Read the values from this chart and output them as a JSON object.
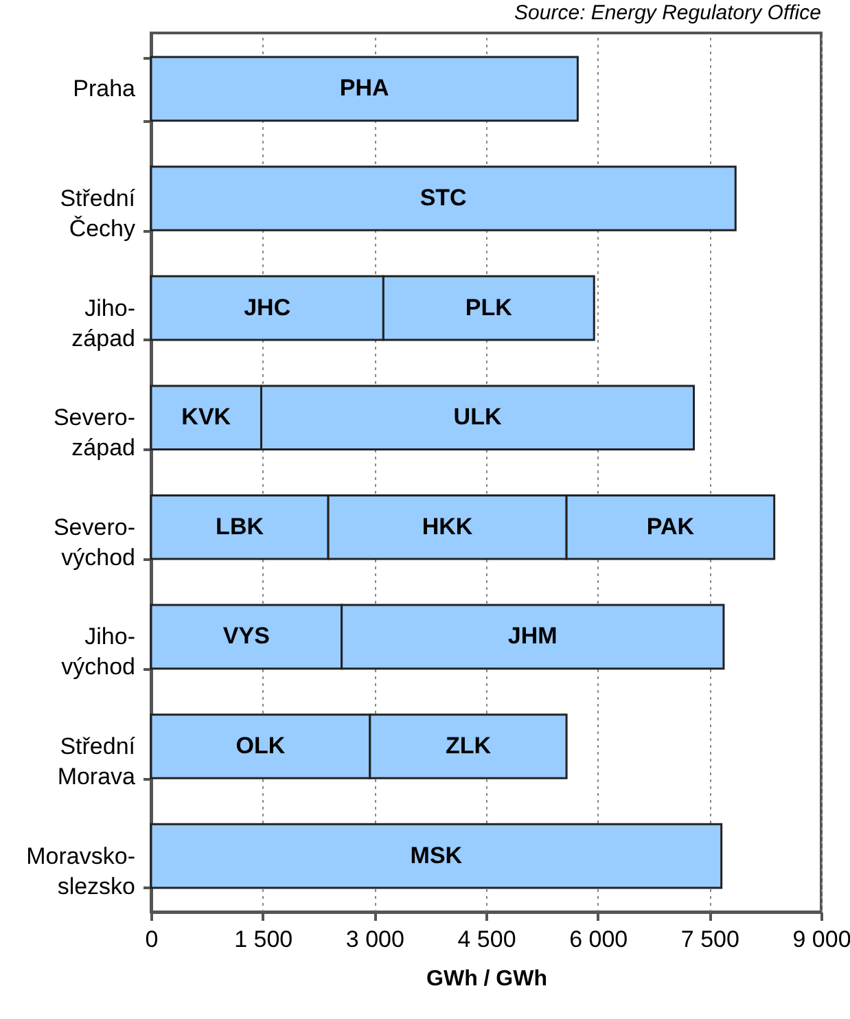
{
  "chart_data": {
    "type": "bar",
    "orientation": "horizontal",
    "stacked": true,
    "categories": [
      "Praha",
      "Střední Čechy",
      "Jiho-západ",
      "Severo-západ",
      "Severo-východ",
      "Jiho-východ",
      "Střední Morava",
      "Moravsko-slezsko"
    ],
    "series": [
      {
        "color": "#99ccff",
        "values": [
          5730,
          7850,
          3120,
          1480,
          2380,
          2560,
          2940,
          7660
        ],
        "value_labels": [
          "PHA",
          "STC",
          "JHC",
          "KVK",
          "LBK",
          "VYS",
          "OLK",
          "MSK"
        ]
      },
      {
        "color": "#99ccff",
        "values": [
          null,
          null,
          2830,
          5810,
          3200,
          5130,
          2640,
          null
        ],
        "value_labels": [
          null,
          null,
          "PLK",
          "ULK",
          "HKK",
          "JHM",
          "ZLK",
          null
        ]
      },
      {
        "color": "#99ccff",
        "values": [
          null,
          null,
          null,
          null,
          2790,
          null,
          null,
          null
        ],
        "value_labels": [
          null,
          null,
          null,
          null,
          "PAK",
          null,
          null,
          null
        ]
      }
    ],
    "xlim": [
      0,
      9000
    ],
    "xticks": [
      0,
      {
        "value": 1500,
        "label": "1 500"
      },
      {
        "value": 3000,
        "label": "3 000"
      },
      {
        "value": 4500,
        "label": "4 500"
      },
      {
        "value": 6000,
        "label": "6 000"
      },
      {
        "value": 7500,
        "label": "7 500"
      },
      {
        "value": 9000,
        "label": "9 000"
      }
    ],
    "xlabel": "GWh / GWh",
    "grid": "x",
    "annotations": [
      "Source: Energy Regulatory Office"
    ]
  }
}
